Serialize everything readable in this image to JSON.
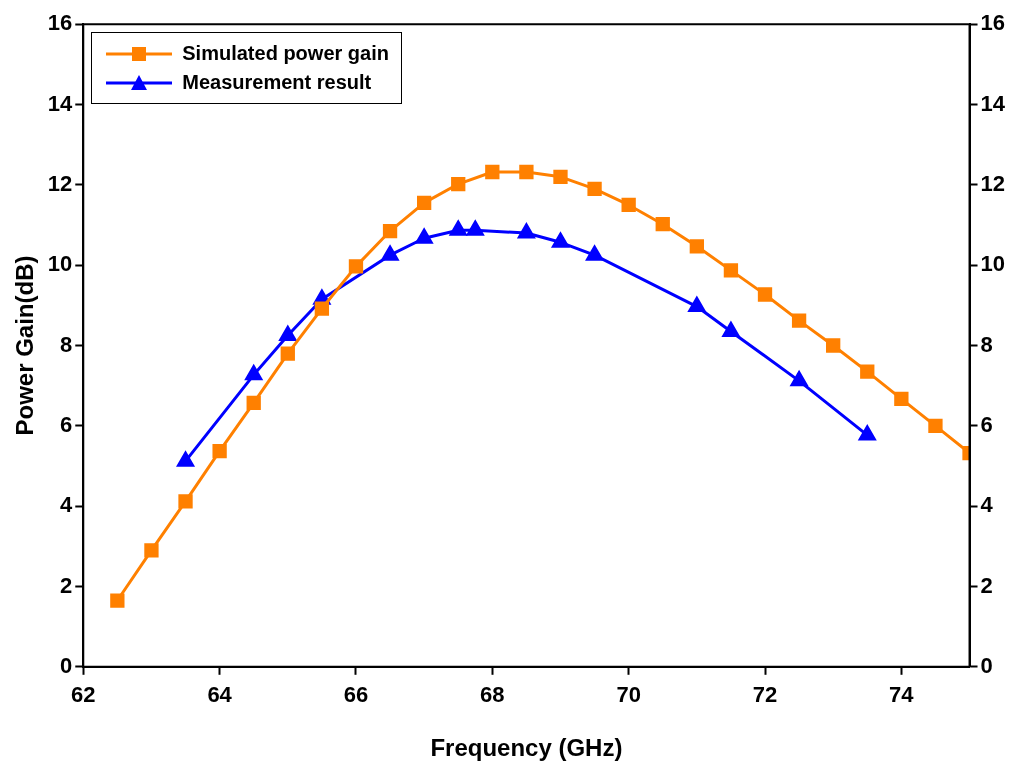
{
  "chart_data": {
    "type": "line",
    "xlabel": "Frequency (GHz)",
    "ylabel": "Power Gain(dB)",
    "xlim": [
      62,
      75
    ],
    "xticks": [
      62,
      64,
      66,
      68,
      70,
      72,
      74
    ],
    "ylim": [
      0,
      16
    ],
    "yticks": [
      0,
      2,
      4,
      6,
      8,
      10,
      12,
      14,
      16
    ],
    "y2lim": [
      0,
      16
    ],
    "y2ticks": [
      0,
      2,
      4,
      6,
      8,
      10,
      12,
      14,
      16
    ],
    "grid": false,
    "legend": "top left",
    "line_style": "solid",
    "series": [
      {
        "name": "Simulated power gain",
        "color": "#ff8000",
        "marker": "square",
        "x": [
          62.5,
          63,
          63.5,
          64,
          64.5,
          65,
          65.5,
          66,
          66.5,
          67,
          67.5,
          68,
          68.5,
          69,
          69.5,
          70,
          70.5,
          71,
          71.5,
          72,
          72.5,
          73,
          73.5,
          74,
          74.5,
          75
        ],
        "values": [
          1.65,
          2.9,
          4.12,
          5.37,
          6.57,
          7.8,
          8.92,
          9.97,
          10.85,
          11.55,
          12.02,
          12.32,
          12.32,
          12.2,
          11.9,
          11.5,
          11.02,
          10.47,
          9.87,
          9.27,
          8.62,
          8.0,
          7.35,
          6.67,
          6.0,
          5.32
        ]
      },
      {
        "name": "Measurement result",
        "color": "#0000ff",
        "marker": "triangle",
        "x": [
          63.5,
          64.5,
          65,
          65.5,
          66.5,
          67,
          67.5,
          67.75,
          68.5,
          69,
          69.5,
          71,
          71.5,
          72.5,
          73.5
        ],
        "values": [
          5.12,
          7.27,
          8.25,
          9.15,
          10.25,
          10.67,
          10.87,
          10.87,
          10.8,
          10.57,
          10.25,
          8.97,
          8.35,
          7.12,
          5.77
        ]
      }
    ]
  }
}
